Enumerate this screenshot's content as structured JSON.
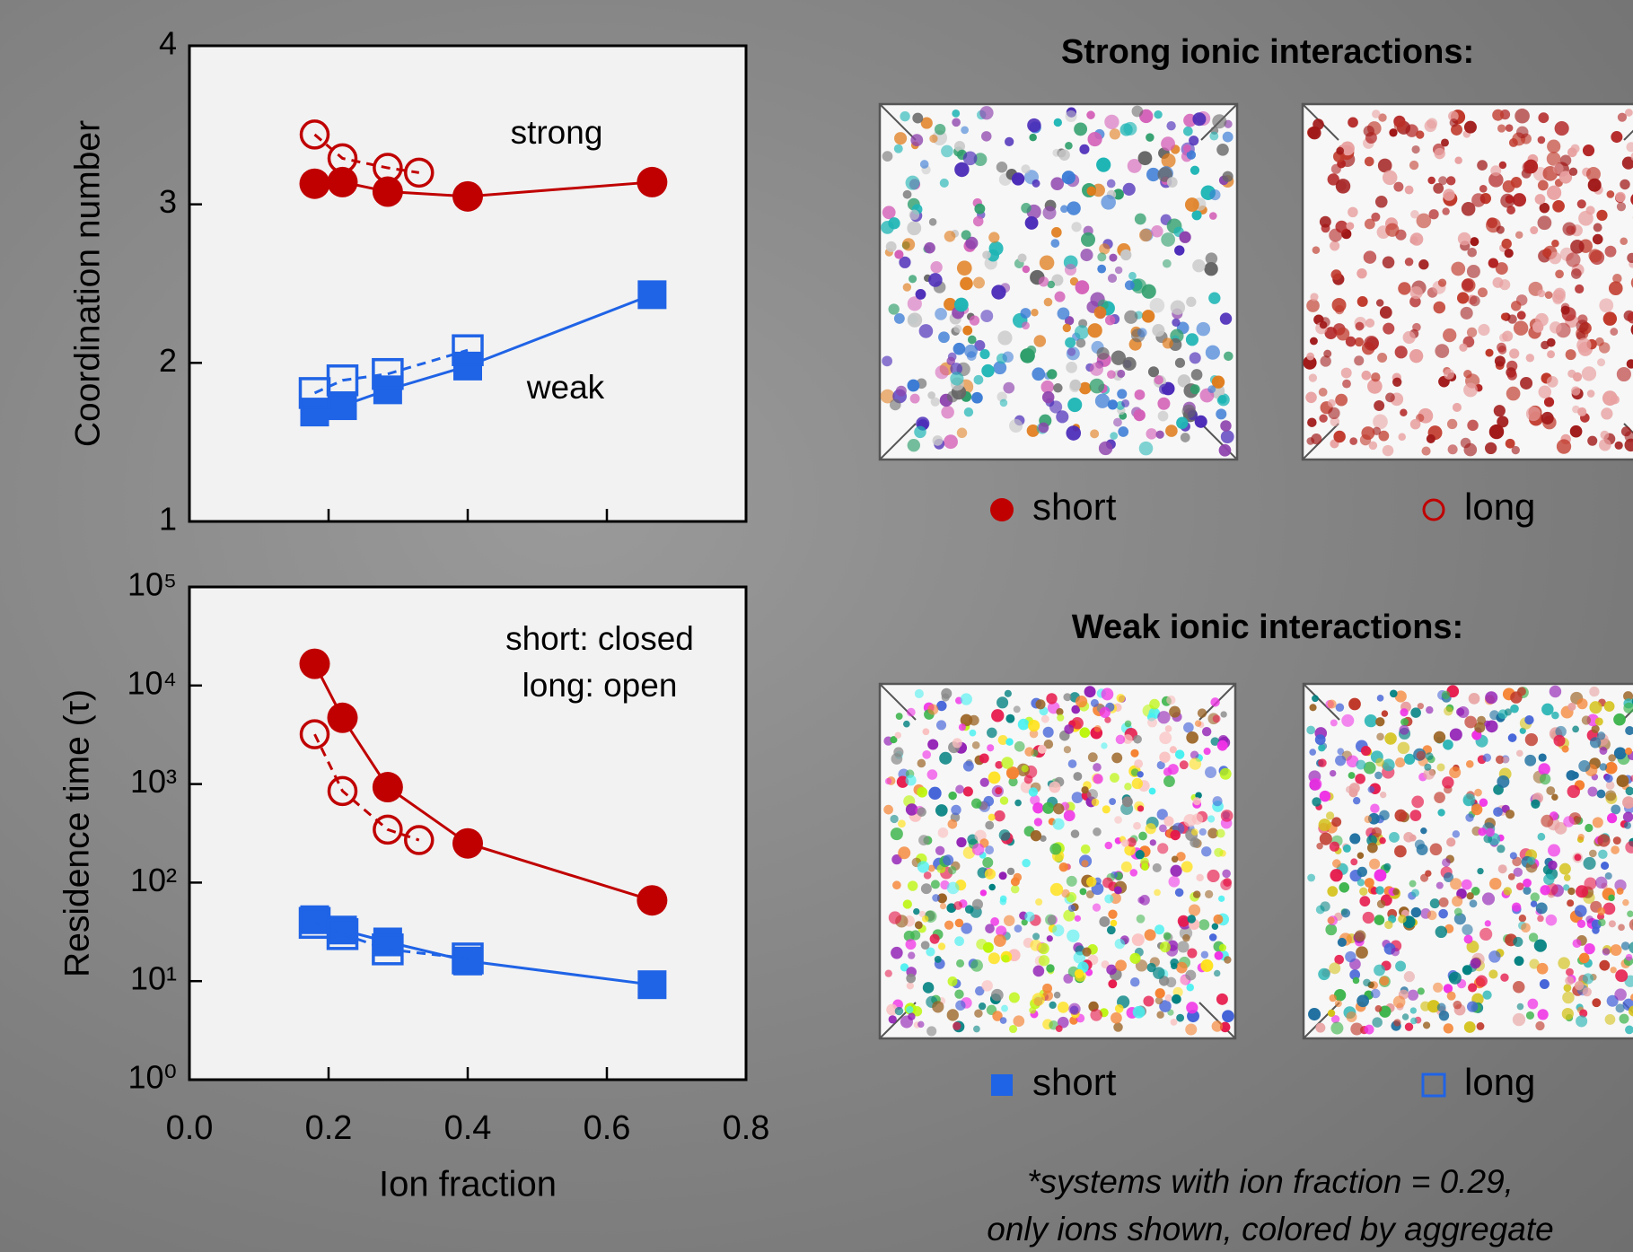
{
  "chart_data": [
    {
      "type": "line",
      "y_label": "Coordination number",
      "xlim": [
        0,
        0.8
      ],
      "ylim": [
        1,
        4
      ],
      "xticks": [
        0,
        0.2,
        0.4,
        0.6,
        0.8
      ],
      "yticks": [
        1,
        2,
        3,
        4
      ],
      "annotations": [
        "strong",
        "weak"
      ],
      "series": [
        {
          "name": "short",
          "color": "#c00000",
          "marker": "circle",
          "filled": true,
          "dashed": false,
          "x": [
            0.18,
            0.22,
            0.285,
            0.4,
            0.665
          ],
          "values": [
            3.13,
            3.14,
            3.08,
            3.05,
            3.14
          ]
        },
        {
          "name": "long",
          "color": "#c00000",
          "marker": "circle",
          "filled": false,
          "dashed": true,
          "x": [
            0.18,
            0.22,
            0.285,
            0.33
          ],
          "values": [
            3.44,
            3.29,
            3.23,
            3.2
          ]
        },
        {
          "name": "short",
          "color": "#1f63e6",
          "marker": "square",
          "filled": true,
          "dashed": false,
          "x": [
            0.18,
            0.22,
            0.285,
            0.4,
            0.665
          ],
          "values": [
            1.69,
            1.73,
            1.83,
            1.98,
            2.43
          ]
        },
        {
          "name": "long",
          "color": "#1f63e6",
          "marker": "square",
          "filled": false,
          "dashed": true,
          "x": [
            0.18,
            0.22,
            0.285,
            0.4
          ],
          "values": [
            1.81,
            1.89,
            1.93,
            2.08
          ]
        }
      ]
    },
    {
      "type": "line",
      "y_label": "Residence time (τ)",
      "x_label": "Ion fraction",
      "log_y": true,
      "xlim": [
        0,
        0.8
      ],
      "ylim": [
        1,
        100000
      ],
      "xticks": [
        {
          "value": 0,
          "label": "0.0"
        },
        {
          "value": 0.2,
          "label": "0.2"
        },
        {
          "value": 0.4,
          "label": "0.4"
        },
        {
          "value": 0.6,
          "label": "0.6"
        },
        {
          "value": 0.8,
          "label": "0.8"
        }
      ],
      "yticks": [
        {
          "value": 1,
          "label": "10⁰"
        },
        {
          "value": 10,
          "label": "10¹"
        },
        {
          "value": 100,
          "label": "10²"
        },
        {
          "value": 1000,
          "label": "10³"
        },
        {
          "value": 10000,
          "label": "10⁴"
        },
        {
          "value": 100000,
          "label": "10⁵"
        }
      ],
      "annotations": [
        "short: closed",
        "long: open"
      ],
      "series": [
        {
          "name": "short",
          "color": "#c00000",
          "marker": "circle",
          "filled": true,
          "dashed": false,
          "x": [
            0.18,
            0.22,
            0.285,
            0.4,
            0.665
          ],
          "values": [
            16600,
            4700,
            930,
            250,
            66
          ]
        },
        {
          "name": "long",
          "color": "#c00000",
          "marker": "circle",
          "filled": false,
          "dashed": true,
          "x": [
            0.18,
            0.22,
            0.285,
            0.33
          ],
          "values": [
            3200,
            850,
            345,
            270
          ]
        },
        {
          "name": "short",
          "color": "#1f63e6",
          "marker": "square",
          "filled": true,
          "dashed": false,
          "x": [
            0.18,
            0.22,
            0.285,
            0.4,
            0.665
          ],
          "values": [
            42,
            33,
            25,
            16,
            9.2
          ]
        },
        {
          "name": "long",
          "color": "#1f63e6",
          "marker": "square",
          "filled": false,
          "dashed": true,
          "x": [
            0.18,
            0.22,
            0.285,
            0.4
          ],
          "values": [
            39,
            30,
            21,
            17
          ]
        }
      ]
    }
  ],
  "panels": {
    "strong_title": "Strong ionic interactions:",
    "weak_title": "Weak ionic interactions:"
  },
  "footnote": [
    "*systems with ion fraction = 0.29,",
    "only ions shown, colored by aggregate"
  ]
}
